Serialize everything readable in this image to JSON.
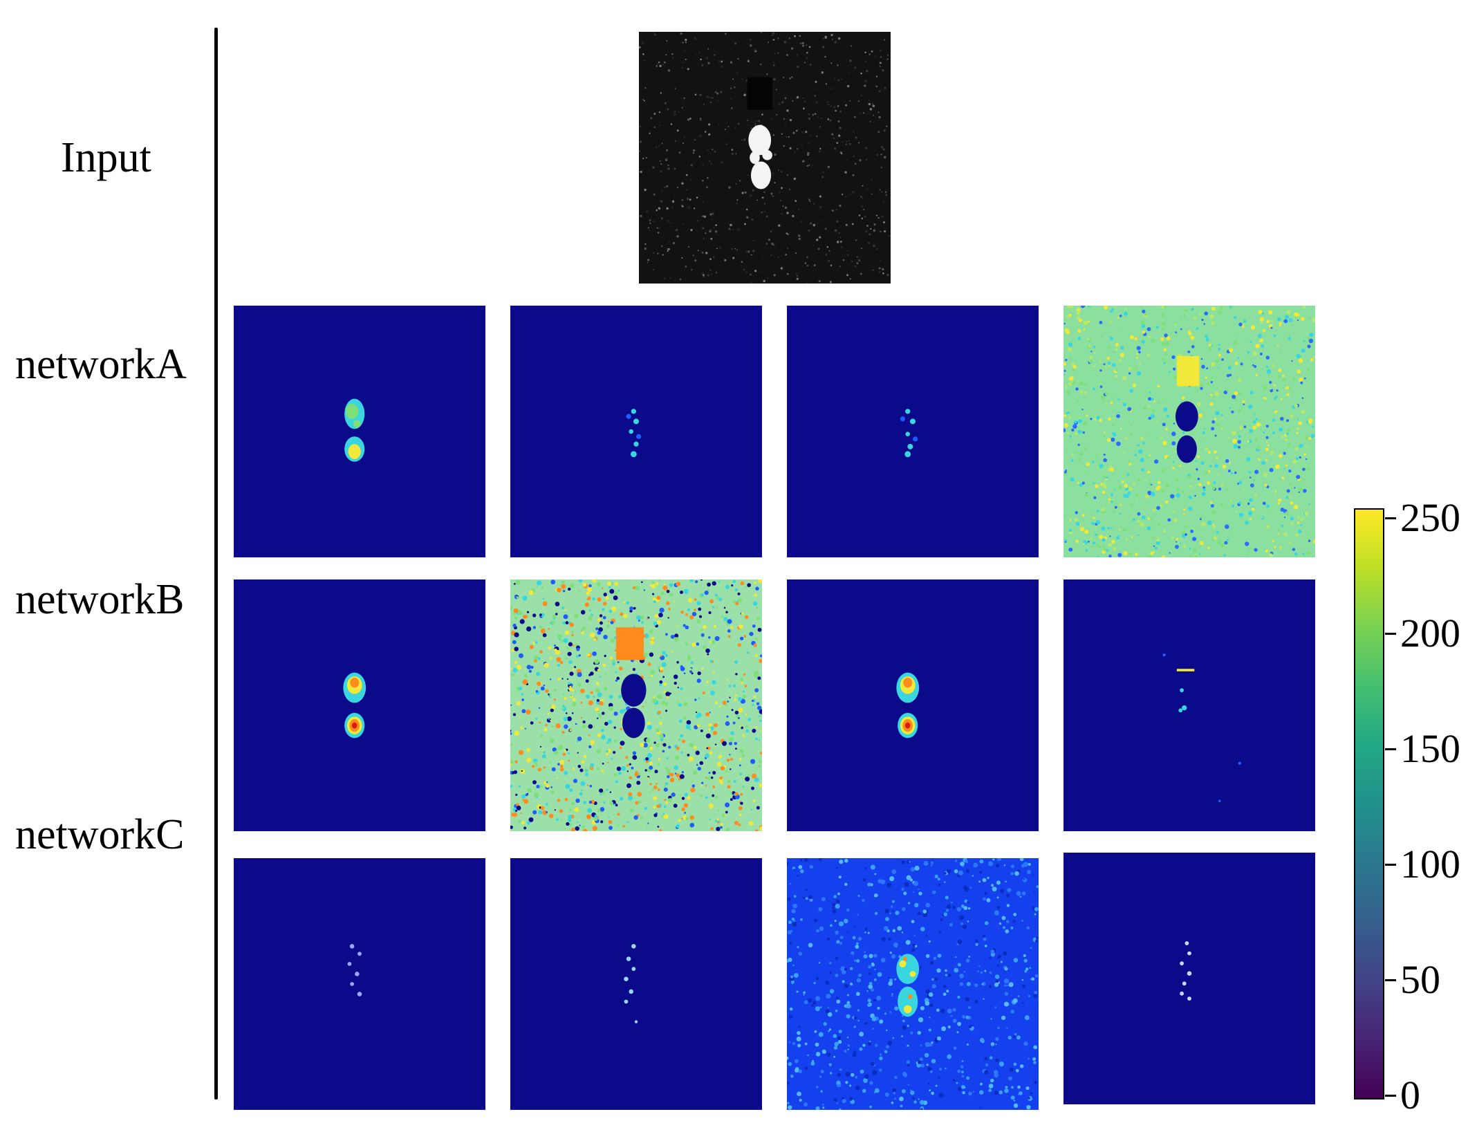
{
  "row_labels": {
    "input": "Input",
    "network_a": "networkA",
    "network_b": "networkB",
    "network_c": "networkC"
  },
  "colorbar": {
    "ticks": [
      "0",
      "50",
      "100",
      "150",
      "200",
      "250"
    ],
    "range": [
      0,
      255
    ],
    "colormap": "viridis"
  },
  "colors": {
    "jet_background_dark": "#0a0a8a",
    "jet_blue": "#0033ff",
    "jet_cyan": "#3ad6e0",
    "jet_green": "#7fe07a",
    "jet_yellow": "#f2e83a",
    "jet_orange": "#ff8a1e",
    "jet_red": "#d81a10"
  }
}
